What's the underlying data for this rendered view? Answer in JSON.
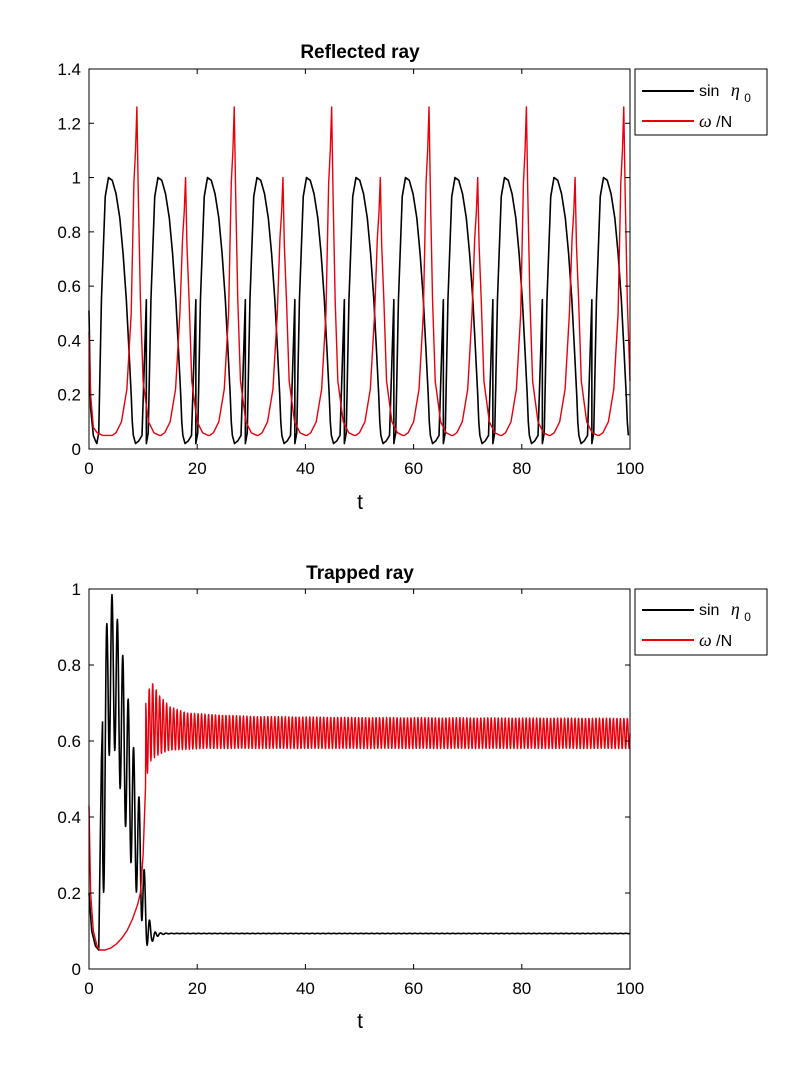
{
  "chart_data": [
    {
      "type": "line",
      "title": "Reflected ray",
      "xlabel": "t",
      "ylabel": "",
      "xlim": [
        0,
        100
      ],
      "ylim": [
        0,
        1.4
      ],
      "xticks": [
        "0",
        "20",
        "40",
        "60",
        "80",
        "100"
      ],
      "yticks": [
        "0",
        "0.2",
        "0.4",
        "0.6",
        "0.8",
        "1",
        "1.2",
        "1.4"
      ],
      "grid": false,
      "legend_position": "outside-top-right",
      "series": [
        {
          "name": "sin η0",
          "legend_main": "sin",
          "legend_symbol": "η",
          "legend_sub": "0",
          "color": "#000000",
          "behavior": "periodic",
          "period": 9.15,
          "first_min_t": 1.45,
          "min_value": 0.02,
          "max_value": 1.0,
          "x": [
            0,
            0.3,
            0.8,
            1.2,
            1.45,
            1.8,
            2.3,
            3.0,
            3.6,
            4.3,
            5.0,
            5.7,
            6.3,
            6.9,
            7.4,
            7.8,
            8.0,
            8.2,
            8.6,
            9.2,
            9.8,
            10.6,
            11.4,
            12.3,
            13.0,
            13.9,
            14.7,
            15.4,
            16.0,
            16.5,
            17.0,
            17.3
          ],
          "y": [
            0.51,
            0.15,
            0.05,
            0.03,
            0.02,
            0.06,
            0.55,
            0.93,
            1.0,
            0.99,
            0.94,
            0.85,
            0.72,
            0.55,
            0.36,
            0.2,
            0.1,
            0.05,
            0.02,
            0.03,
            0.05,
            0.55,
            0.9,
            1.0,
            0.98,
            0.92,
            0.8,
            0.65,
            0.45,
            0.25,
            0.08,
            0.02
          ]
        },
        {
          "name": "ω/N",
          "legend_symbol": "ω",
          "legend_main": "/N",
          "color": "#e8000b",
          "behavior": "periodic",
          "period": 9.0,
          "first_min_t": 4.3,
          "min_value": 0.05,
          "peak_values": [
            1.26,
            1.0,
            1.26,
            1.0,
            1.26,
            1.0,
            1.26,
            1.0,
            1.26,
            1.0,
            1.26
          ],
          "x": [
            0,
            0.3,
            0.8,
            1.5,
            2.5,
            3.5,
            4.3,
            5.0,
            6.0,
            7.0,
            7.8,
            8.3,
            8.6,
            8.85,
            9.1,
            9.5,
            10.0,
            11.0,
            12.0,
            13.0,
            14.0,
            15.0,
            16.0,
            16.8,
            17.2,
            17.5,
            17.8,
            18.0
          ],
          "y": [
            0.43,
            0.2,
            0.08,
            0.06,
            0.05,
            0.05,
            0.05,
            0.06,
            0.1,
            0.22,
            0.5,
            0.98,
            1.1,
            1.26,
            0.95,
            0.55,
            0.25,
            0.1,
            0.06,
            0.05,
            0.05,
            0.06,
            0.12,
            0.3,
            0.6,
            1.0,
            0.55,
            0.2
          ]
        }
      ]
    },
    {
      "type": "line",
      "title": "Trapped ray",
      "xlabel": "t",
      "ylabel": "",
      "xlim": [
        0,
        100
      ],
      "ylim": [
        0,
        1
      ],
      "xticks": [
        "0",
        "20",
        "40",
        "60",
        "80",
        "100"
      ],
      "yticks": [
        "0",
        "0.2",
        "0.4",
        "0.6",
        "0.8",
        "1"
      ],
      "grid": false,
      "legend_position": "outside-top-right",
      "series": [
        {
          "name": "sin η0",
          "legend_main": "sin",
          "legend_symbol": "η",
          "legend_sub": "0",
          "color": "#000000",
          "behavior": "transient-then-steady",
          "x": [
            0,
            0.5,
            1.2,
            1.8,
            2.3,
            3.0,
            3.5,
            4.0,
            5.0,
            6.0,
            7.0,
            8.0,
            9.0,
            10.0,
            10.5,
            11.0,
            12.0,
            14.0,
            16.0,
            20.0,
            30.0,
            40.0,
            60.0,
            80.0,
            100.0
          ],
          "y": [
            0.2,
            0.1,
            0.06,
            0.05,
            0.55,
            0.9,
            1.0,
            0.97,
            0.8,
            0.62,
            0.45,
            0.32,
            0.22,
            0.12,
            0.06,
            0.07,
            0.085,
            0.09,
            0.092,
            0.093,
            0.094,
            0.094,
            0.094,
            0.094,
            0.094
          ],
          "oscillation_envelope": {
            "t": [
              2.5,
              3.5,
              4.5,
              5.5,
              6.5,
              7.5,
              8.5,
              9.5,
              10.5,
              11.5,
              13.0,
              15.0
            ],
            "upper": [
              0.6,
              1.0,
              0.98,
              0.9,
              0.8,
              0.68,
              0.55,
              0.42,
              0.2,
              0.1,
              0.095,
              0.094
            ],
            "lower": [
              0.1,
              0.55,
              0.6,
              0.5,
              0.4,
              0.3,
              0.22,
              0.15,
              0.06,
              0.07,
              0.09,
              0.093
            ]
          }
        },
        {
          "name": "ω/N",
          "legend_symbol": "ω",
          "legend_main": "/N",
          "color": "#e8000b",
          "behavior": "transient-then-oscillating",
          "x": [
            0,
            0.3,
            0.8,
            1.5,
            2.0,
            3.0,
            4.0,
            5.0,
            6.0,
            7.0,
            8.0,
            9.0,
            9.5,
            10.0,
            10.5,
            11.0,
            12.0,
            14.0,
            20.0,
            40.0,
            60.0,
            80.0,
            100.0
          ],
          "y": [
            0.43,
            0.2,
            0.1,
            0.06,
            0.05,
            0.05,
            0.055,
            0.065,
            0.08,
            0.1,
            0.13,
            0.17,
            0.2,
            0.3,
            0.5,
            0.65,
            0.62,
            0.62,
            0.62,
            0.62,
            0.62,
            0.62,
            0.62
          ],
          "oscillation_envelope": {
            "t": [
              10.5,
              11.5,
              13.0,
              15.0,
              18.0,
              22.0,
              30.0,
              50.0,
              100.0
            ],
            "upper": [
              0.7,
              0.76,
              0.72,
              0.69,
              0.675,
              0.67,
              0.665,
              0.662,
              0.66
            ],
            "lower": [
              0.5,
              0.55,
              0.565,
              0.575,
              0.578,
              0.58,
              0.58,
              0.58,
              0.58
            ]
          }
        }
      ]
    }
  ]
}
